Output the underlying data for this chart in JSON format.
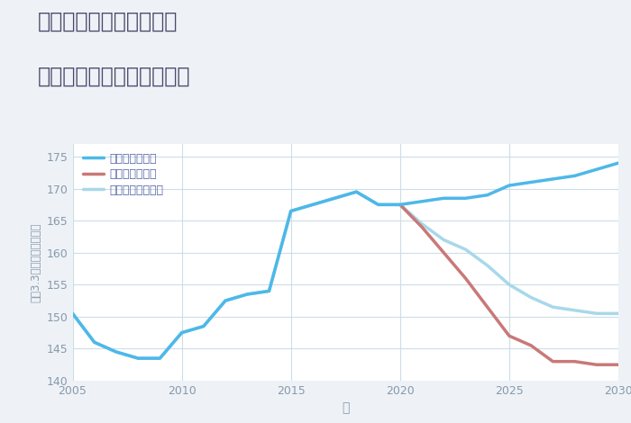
{
  "title_line1": "兵庫県西宮市門戸西町の",
  "title_line2": "中古マンションの価格推移",
  "xlabel": "年",
  "ylabel": "坪（3.3㎡）単価（万円）",
  "background_color": "#eef2f7",
  "plot_background_color": "#ffffff",
  "ylim": [
    140,
    177
  ],
  "xlim": [
    2005,
    2030
  ],
  "yticks": [
    140,
    145,
    150,
    155,
    160,
    165,
    170,
    175
  ],
  "xticks": [
    2005,
    2010,
    2015,
    2020,
    2025,
    2030
  ],
  "good_scenario": {
    "label": "グッドシナリオ",
    "color": "#4db8e8",
    "linewidth": 2.5,
    "x": [
      2005,
      2006,
      2007,
      2008,
      2009,
      2010,
      2011,
      2012,
      2013,
      2014,
      2015,
      2016,
      2017,
      2018,
      2019,
      2020,
      2021,
      2022,
      2023,
      2024,
      2025,
      2026,
      2027,
      2028,
      2029,
      2030
    ],
    "y": [
      150.5,
      146.0,
      144.5,
      143.5,
      143.5,
      147.5,
      148.5,
      152.5,
      153.5,
      154.0,
      166.5,
      167.5,
      168.5,
      169.5,
      167.5,
      167.5,
      168.0,
      168.5,
      168.5,
      169.0,
      170.5,
      171.0,
      171.5,
      172.0,
      173.0,
      174.0
    ]
  },
  "bad_scenario": {
    "label": "バッドシナリオ",
    "color": "#c97878",
    "linewidth": 2.5,
    "x": [
      2020,
      2021,
      2022,
      2023,
      2024,
      2025,
      2026,
      2027,
      2028,
      2029,
      2030
    ],
    "y": [
      167.5,
      164.0,
      160.0,
      156.0,
      151.5,
      147.0,
      145.5,
      143.0,
      143.0,
      142.5,
      142.5
    ]
  },
  "normal_scenario": {
    "label": "ノーマルシナリオ",
    "color": "#a8d8ea",
    "linewidth": 2.5,
    "x": [
      2005,
      2006,
      2007,
      2008,
      2009,
      2010,
      2011,
      2012,
      2013,
      2014,
      2015,
      2016,
      2017,
      2018,
      2019,
      2020,
      2021,
      2022,
      2023,
      2024,
      2025,
      2026,
      2027,
      2028,
      2029,
      2030
    ],
    "y": [
      150.5,
      146.0,
      144.5,
      143.5,
      143.5,
      147.5,
      148.5,
      152.5,
      153.5,
      154.0,
      166.5,
      167.5,
      168.5,
      169.5,
      167.5,
      167.5,
      164.5,
      162.0,
      160.5,
      158.0,
      155.0,
      153.0,
      151.5,
      151.0,
      150.5,
      150.5
    ]
  },
  "grid_color": "#ccdde8",
  "title_color": "#4a4a6a",
  "axis_label_color": "#8899aa",
  "tick_color": "#8899aa",
  "legend_text_color": "#5566aa"
}
